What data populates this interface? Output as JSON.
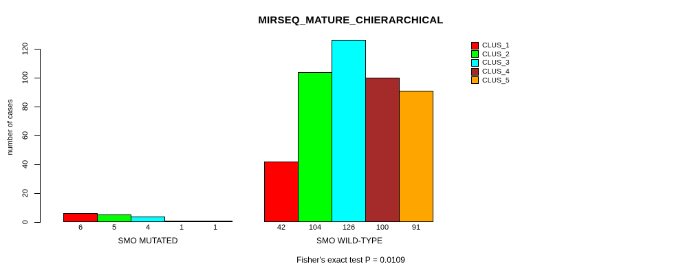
{
  "chart_data": {
    "type": "bar",
    "title": "MIRSEQ_MATURE_CHIERARCHICAL",
    "ylabel": "number of cases",
    "annotation": "Fisher's exact test P = 0.0109",
    "categories": [
      "SMO MUTATED",
      "SMO WILD-TYPE"
    ],
    "series": [
      {
        "name": "CLUS_1",
        "color": "#ff0000",
        "values": [
          6,
          42
        ]
      },
      {
        "name": "CLUS_2",
        "color": "#00ff00",
        "values": [
          5,
          104
        ]
      },
      {
        "name": "CLUS_3",
        "color": "#00ffff",
        "values": [
          4,
          126
        ]
      },
      {
        "name": "CLUS_4",
        "color": "#a52a2a",
        "values": [
          1,
          100
        ]
      },
      {
        "name": "CLUS_5",
        "color": "#ffa500",
        "values": [
          1,
          91
        ]
      }
    ],
    "ylim": [
      0,
      120
    ],
    "yticks": [
      0,
      20,
      40,
      60,
      80,
      100,
      120
    ],
    "grid": false,
    "legend_position": "top-right",
    "bar_value_labels_shown": true
  }
}
